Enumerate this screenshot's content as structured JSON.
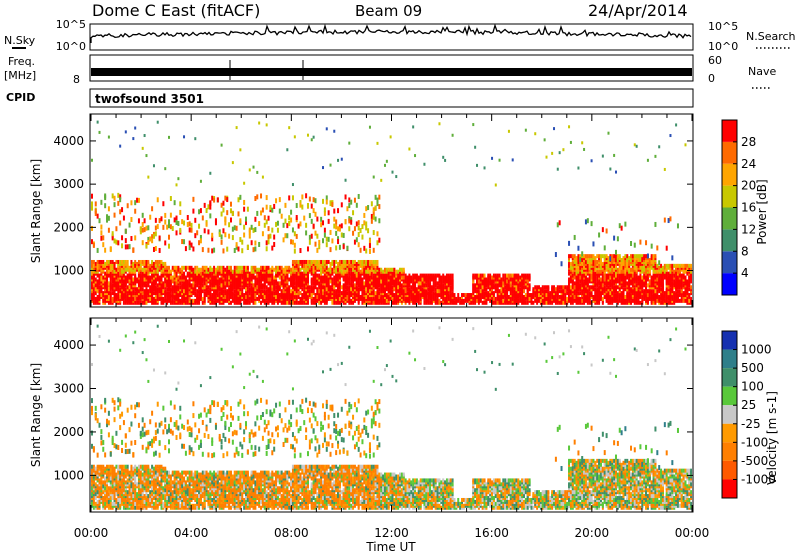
{
  "header": {
    "station": "Dome C East (fitACF)",
    "beam": "Beam 09",
    "date": "24/Apr/2014"
  },
  "noise_panel": {
    "left_label": "N.Sky",
    "right_label": "N.Search",
    "left_ticks": [
      "10^5",
      "10^0"
    ],
    "right_ticks": [
      "10^5",
      "10^0"
    ]
  },
  "freq_panel": {
    "left_label_1": "Freq.",
    "left_label_2": "[MHz]",
    "left_ticks": [
      "8"
    ],
    "right_label": "Nave",
    "right_ticks": [
      "60",
      "0"
    ]
  },
  "cpid": {
    "label": "CPID",
    "program": "twofsound 3501"
  },
  "time_axis": {
    "label": "Time UT",
    "ticks": [
      "00:00",
      "04:00",
      "08:00",
      "12:00",
      "16:00",
      "20:00",
      "00:00"
    ]
  },
  "colors": {
    "power": [
      "#0000ff",
      "#2a4fb4",
      "#3f8f6a",
      "#5fae3a",
      "#c8c800",
      "#ffa500",
      "#ff6a00",
      "#ff0000"
    ],
    "velocity": [
      "#1530b0",
      "#2f7f8a",
      "#3f8f6a",
      "#59c83a",
      "#c8c8c8",
      "#ff9a00",
      "#ff7f00",
      "#ff5a00",
      "#ff0000"
    ]
  },
  "chart_data": [
    {
      "type": "heatmap",
      "title": "Power",
      "xlabel": "Time UT",
      "ylabel": "Slant Range [km]",
      "xlim": [
        "00:00",
        "24:00"
      ],
      "ylim": [
        180,
        4600
      ],
      "yticks": [
        "1000",
        "2000",
        "3000",
        "4000"
      ],
      "colorbar_label": "Power [dB]",
      "colorbar_ticks": [
        "4",
        "8",
        "12",
        "16",
        "20",
        "24",
        "28"
      ],
      "colorbar_range": [
        0,
        32
      ]
    },
    {
      "type": "heatmap",
      "title": "Velocity",
      "xlabel": "Time UT",
      "ylabel": "Slant Range [km]",
      "xlim": [
        "00:00",
        "24:00"
      ],
      "ylim": [
        180,
        4600
      ],
      "yticks": [
        "1000",
        "2000",
        "3000",
        "4000"
      ],
      "colorbar_label": "Velocity [m s-1]",
      "colorbar_ticks": [
        "1000",
        "500",
        "100",
        "25",
        "-25",
        "-100",
        "-500",
        "-1000"
      ]
    }
  ]
}
